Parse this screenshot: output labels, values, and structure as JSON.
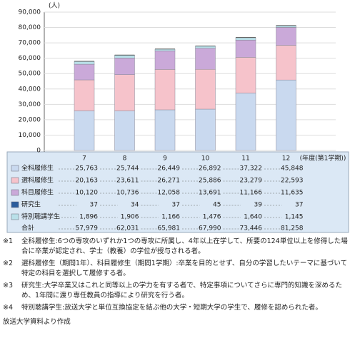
{
  "chart_data": {
    "type": "bar",
    "stacked": true,
    "y_label": "(人)",
    "x_label": "(年度(第1学期))",
    "categories": [
      "7",
      "8",
      "9",
      "10",
      "11",
      "12"
    ],
    "ylim": [
      0,
      90000
    ],
    "yticks": [
      0,
      {
        "value": 10000,
        "label": "10,000"
      },
      {
        "value": 20000,
        "label": "20,000"
      },
      {
        "value": 30000,
        "label": "30,000"
      },
      {
        "value": 40000,
        "label": "40,000"
      },
      {
        "value": 50000,
        "label": "50,000"
      },
      {
        "value": 60000,
        "label": "60,000"
      },
      {
        "value": 70000,
        "label": "70,000"
      },
      {
        "value": 80000,
        "label": "80,000"
      },
      {
        "value": 90000,
        "label": "90,000"
      }
    ],
    "grid": true,
    "series": [
      {
        "name": "全科履修生",
        "color": "#c9d9ef",
        "values": [
          25763,
          25744,
          26449,
          26892,
          37322,
          45848
        ],
        "value_labels": [
          "25,763",
          "25,744",
          "26,449",
          "26,892",
          "37,322",
          "45,848"
        ]
      },
      {
        "name": "選科履修生",
        "color": "#f6c3cb",
        "values": [
          20163,
          23611,
          26271,
          25886,
          23279,
          22593
        ],
        "value_labels": [
          "20,163",
          "23,611",
          "26,271",
          "25,886",
          "23,279",
          "22,593"
        ]
      },
      {
        "name": "科目履修生",
        "color": "#caa9d9",
        "values": [
          10120,
          10736,
          12058,
          13691,
          11166,
          11635
        ],
        "value_labels": [
          "10,120",
          "10,736",
          "12,058",
          "13,691",
          "11,166",
          "11,635"
        ]
      },
      {
        "name": "研究生",
        "color": "#2b5c9c",
        "values": [
          37,
          34,
          37,
          45,
          39,
          37
        ],
        "value_labels": [
          "37",
          "34",
          "37",
          "45",
          "39",
          "37"
        ]
      },
      {
        "name": "特別聴講学生",
        "color": "#b9e0e9",
        "values": [
          1896,
          1906,
          1166,
          1476,
          1640,
          1145
        ],
        "value_labels": [
          "1,896",
          "1,906",
          "1,166",
          "1,476",
          "1,640",
          "1,145"
        ]
      }
    ],
    "total": {
      "name": "合計",
      "values": [
        57979,
        62031,
        65981,
        67990,
        73446,
        81258
      ],
      "value_labels": [
        "57,979",
        "62,031",
        "65,981",
        "67,990",
        "73,446",
        "81,258"
      ]
    }
  },
  "footnotes": [
    {
      "marker": "※1",
      "text": "全科履修生:6つの専攻のいずれか1つの専攻に所属し、4年以上在学して、所要の124単位以上を修得した場合に卒業が認定され、学士（教養）の学位が授与される者。"
    },
    {
      "marker": "※2",
      "text": "選科履修生（期間1年）、科目履修生（期間1学期）:卒業を目的とせず、自分の学習したいテーマに基づいて特定の科目を選択して履修する者。"
    },
    {
      "marker": "※3",
      "text": "研究生:大学卒業又はこれと同等以上の学力を有する者で、特定事項についてさらに専門的知識を深めるため、1年間に渡り専任教員の指導により研究を行う者。"
    },
    {
      "marker": "※4",
      "text": "特別聴講学生:放送大学と単位互換協定を結ぶ他の大学・短期大学の学生で、履修を認められた者。"
    }
  ],
  "source": "放送大学資料より作成"
}
